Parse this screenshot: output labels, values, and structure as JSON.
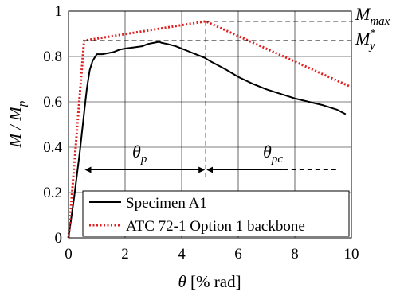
{
  "chart_data": {
    "type": "line",
    "xlabel_symbol": "θ",
    "xlabel_units": " [% rad]",
    "ylabel": "M / M",
    "ylabel_sub": "p",
    "xlim": [
      0,
      10
    ],
    "ylim": [
      0,
      1
    ],
    "x_ticks": [
      "0",
      "2",
      "4",
      "6",
      "8",
      "10"
    ],
    "y_ticks": [
      "0",
      "0.2",
      "0.4",
      "0.6",
      "0.8",
      "1"
    ],
    "grid": true,
    "legend": {
      "placement": "bottom-right",
      "entries": [
        "Specimen A1",
        "ATC 72-1 Option 1 backbone"
      ]
    },
    "series": [
      {
        "name": "Specimen A1",
        "color": "#000000",
        "style": "solid",
        "x": [
          0,
          0.2,
          0.4,
          0.55,
          0.65,
          0.75,
          0.85,
          0.95,
          1.0,
          1.1,
          1.2,
          1.4,
          1.6,
          1.8,
          2.0,
          2.3,
          2.6,
          2.8,
          3.0,
          3.2,
          3.3,
          3.5,
          3.8,
          4.0,
          4.2,
          4.5,
          4.8,
          5.0,
          5.3,
          5.6,
          6.0,
          6.5,
          7.0,
          7.5,
          8.0,
          8.5,
          9.0,
          9.5,
          9.8
        ],
        "y": [
          0,
          0.18,
          0.38,
          0.55,
          0.66,
          0.74,
          0.78,
          0.8,
          0.81,
          0.81,
          0.81,
          0.815,
          0.82,
          0.83,
          0.835,
          0.84,
          0.845,
          0.855,
          0.86,
          0.865,
          0.86,
          0.855,
          0.845,
          0.835,
          0.825,
          0.81,
          0.795,
          0.78,
          0.76,
          0.74,
          0.71,
          0.68,
          0.655,
          0.635,
          0.615,
          0.6,
          0.585,
          0.565,
          0.545
        ]
      },
      {
        "name": "ATC 72-1 Option 1 backbone",
        "color": "#e02020",
        "style": "dotted",
        "x": [
          0,
          0.55,
          4.85,
          10
        ],
        "y": [
          0,
          0.87,
          0.955,
          0.665
        ]
      }
    ],
    "annotations": {
      "m_max": "M",
      "m_max_sub": "max",
      "m_y": "M",
      "m_y_sup": "*",
      "m_y_sub": "y",
      "theta_p": "θ",
      "theta_p_sub": "p",
      "theta_pc": "θ",
      "theta_pc_sub": "pc",
      "m_max_value": 0.955,
      "m_y_value": 0.87,
      "theta_y_value": 0.55,
      "theta_cap_value": 4.85,
      "theta_arrow_y": 0.3
    }
  }
}
